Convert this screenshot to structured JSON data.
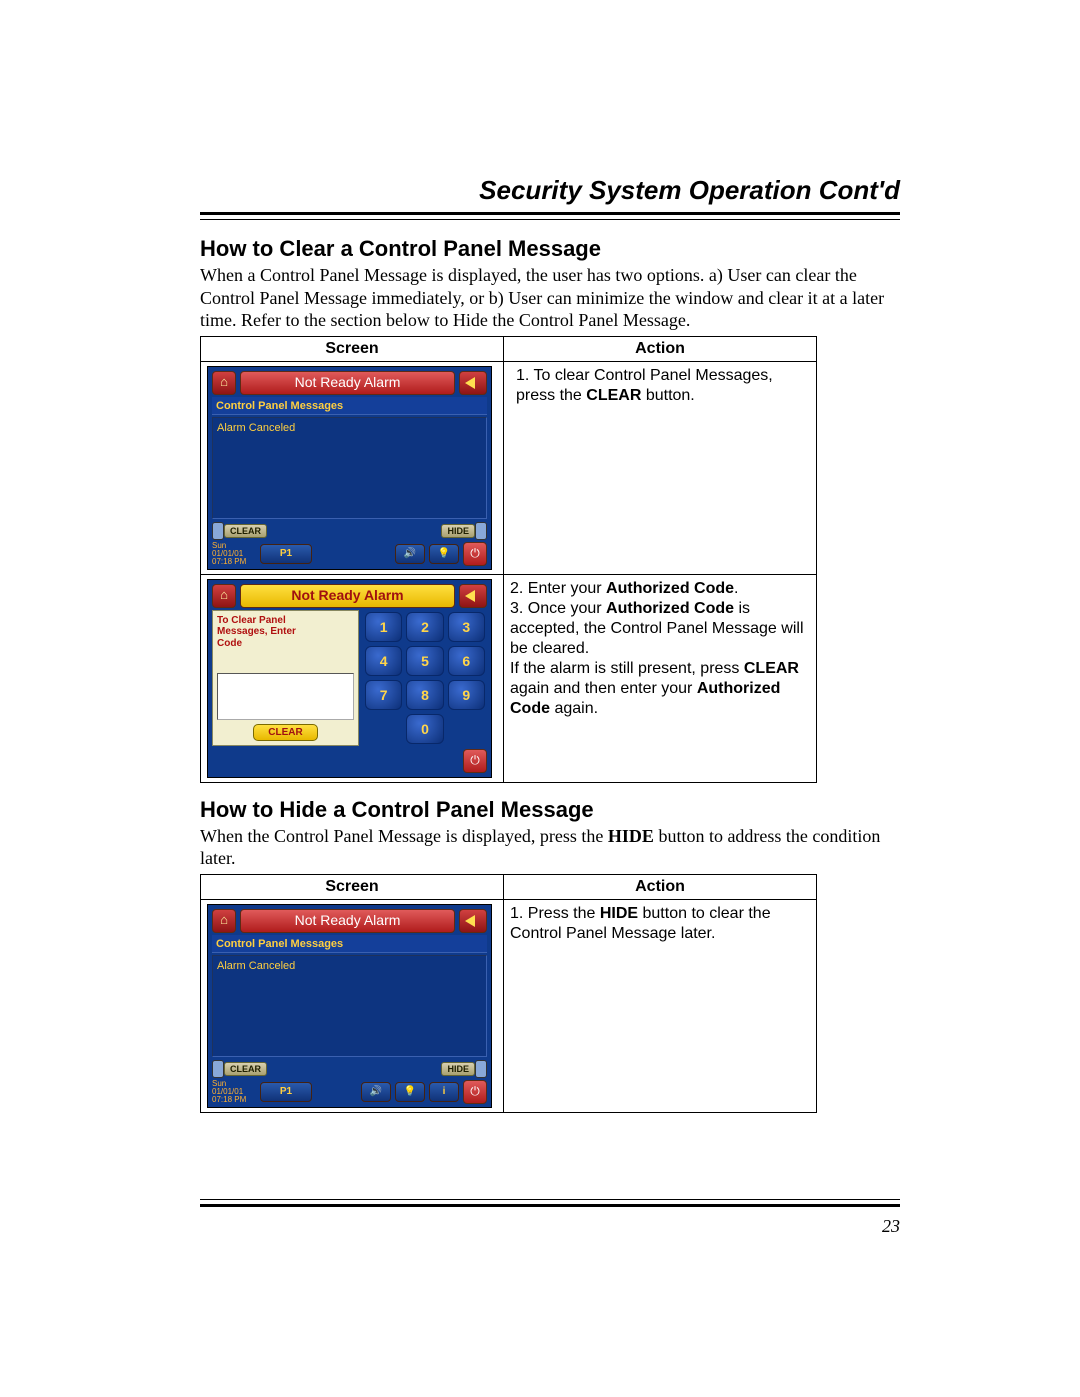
{
  "page_title": "Security System Operation Cont'd",
  "page_number": "23",
  "section1": {
    "heading": "How to Clear a Control Panel Message",
    "para": "When a Control Panel Message is displayed, the user has two options. a) User can clear the Control Panel Message immediately, or b) User can minimize the window and clear it at a later time. Refer to the section below to Hide the Control Panel Message."
  },
  "section2": {
    "heading": "How to Hide a Control Panel Message",
    "para_pre": "When the Control Panel Message is displayed, press the ",
    "para_bold": "HIDE",
    "para_post": " button to address the condition later."
  },
  "table": {
    "col_screen": "Screen",
    "col_action": "Action"
  },
  "actions": {
    "r1_1a": "1.  To clear Control Panel Messages, press the ",
    "r1_1b": "CLEAR",
    "r1_1c": " button.",
    "r2_2a": "2.   Enter your ",
    "r2_2b": "Authorized Code",
    "r2_2c": ".",
    "r2_3a": "3.   Once your ",
    "r2_3b": "Authorized Code",
    "r2_3c": " is accepted, the Control Panel Message will be cleared.",
    "r2_4a": "  If the alarm is still present, press ",
    "r2_4b": "CLEAR",
    "r2_4c": " again and then enter your ",
    "r2_4d": "Authorized Code",
    "r2_4e": " again.",
    "r3_1a": "1. Press the ",
    "r3_1b": "HIDE",
    "r3_1c": " button to clear the Control Panel Message later."
  },
  "ts": {
    "title_notready": "Not Ready Alarm",
    "subtitle": "Control Panel Messages",
    "msg": "Alarm Canceled",
    "clear": "CLEAR",
    "hide": "HIDE",
    "time1": "Sun 01/01/01",
    "time2": "07:18 PM",
    "p1": "P1",
    "keypad_title": "Not Ready Alarm",
    "left_msg_1": "To Clear Panel",
    "left_msg_2": "Messages, Enter",
    "left_msg_3": "Code",
    "k1": "1",
    "k2": "2",
    "k3": "3",
    "k4": "4",
    "k5": "5",
    "k6": "6",
    "k7": "7",
    "k8": "8",
    "k9": "9",
    "k0": "0"
  },
  "colors": {
    "panel_bg": "#0f3a8b",
    "red_grad_a": "#e05a5a",
    "red_grad_b": "#b01c1c",
    "yellow_grad_a": "#ffe040",
    "yellow_grad_b": "#e8b800",
    "accent_text": "#ffcf40"
  }
}
